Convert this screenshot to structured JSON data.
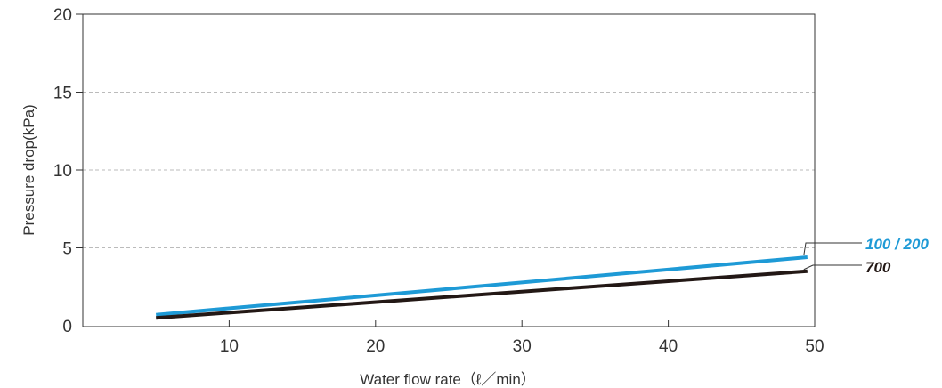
{
  "chart_data": {
    "type": "line",
    "xlabel": "Water flow rate（ℓ／min）",
    "ylabel": "Pressure drop(kPa)",
    "xlim": [
      0,
      50
    ],
    "ylim": [
      0,
      20
    ],
    "x_ticks": [
      10,
      20,
      30,
      40,
      50
    ],
    "y_ticks": [
      0,
      5,
      10,
      15,
      20
    ],
    "grid": "horizontal dashed",
    "series": [
      {
        "name": "100 / 200",
        "color": "#1e9ad6",
        "x": [
          5,
          49.5
        ],
        "y": [
          0.7,
          4.4
        ]
      },
      {
        "name": "700",
        "color": "#231815",
        "x": [
          5,
          49.5
        ],
        "y": [
          0.5,
          3.5
        ]
      }
    ]
  }
}
